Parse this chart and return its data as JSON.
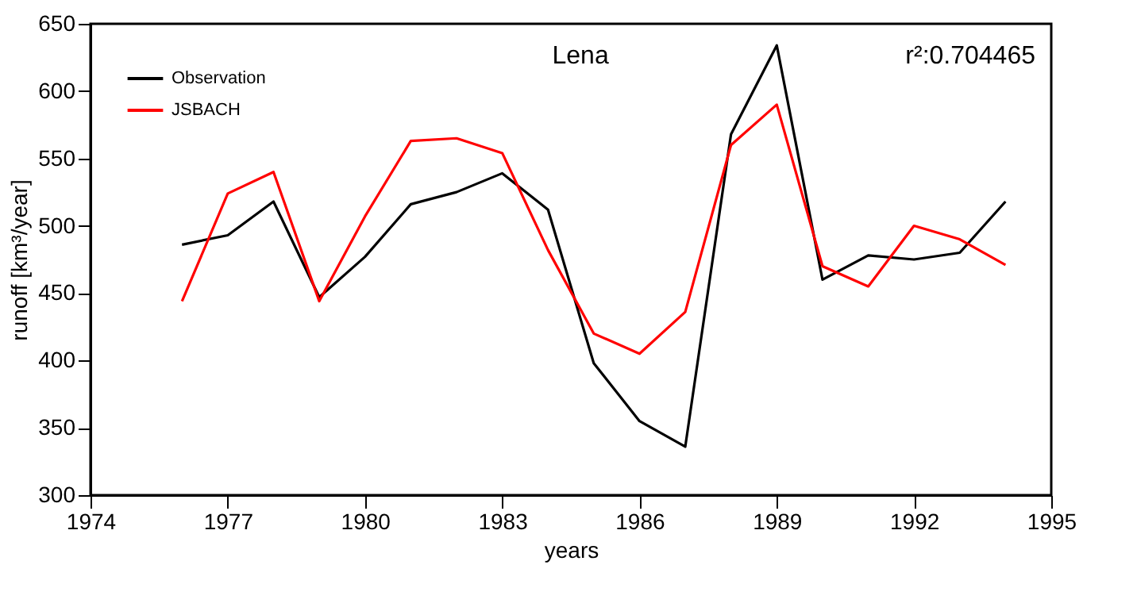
{
  "chart_data": {
    "type": "line",
    "title": "Lena",
    "xlabel": "years",
    "ylabel": "runoff [km³/year]",
    "annotations": [
      "r²:0.704465"
    ],
    "x": [
      1976,
      1977,
      1978,
      1979,
      1980,
      1981,
      1982,
      1983,
      1984,
      1985,
      1986,
      1987,
      1988,
      1989,
      1990,
      1991,
      1992,
      1993,
      1994
    ],
    "series": [
      {
        "name": "Observation",
        "color": "#000000",
        "values": [
          486,
          493,
          518,
          447,
          477,
          516,
          525,
          539,
          512,
          398,
          355,
          336,
          568,
          634,
          460,
          478,
          475,
          480,
          518
        ]
      },
      {
        "name": "JSBACH",
        "color": "#ff0000",
        "values": [
          444,
          524,
          540,
          444,
          507,
          563,
          565,
          554,
          482,
          420,
          405,
          436,
          560,
          590,
          470,
          455,
          500,
          490,
          471
        ]
      }
    ],
    "xlim": [
      1974,
      1995
    ],
    "xticks": [
      1974,
      1977,
      1980,
      1983,
      1986,
      1989,
      1992,
      1995
    ],
    "ylim": [
      300,
      650
    ],
    "yticks": [
      300,
      350,
      400,
      450,
      500,
      550,
      600,
      650
    ],
    "grid": false,
    "legend": "top left",
    "marker": "none",
    "line_style": "solid"
  }
}
